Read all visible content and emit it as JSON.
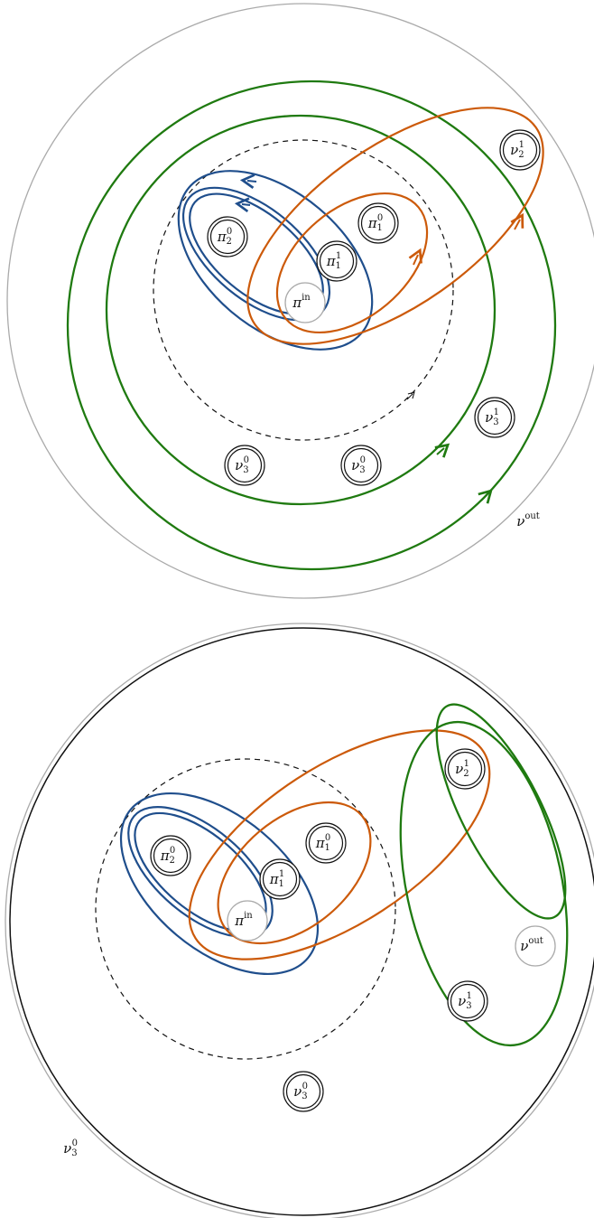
{
  "colors": {
    "blue": "#1f4e8c",
    "orange": "#cc5a0a",
    "green": "#1f7a10",
    "gray": "#aaaaaa",
    "black": "#111111"
  },
  "top_panel": {
    "nodes": [
      {
        "id": "pi2_0",
        "base": "π",
        "sub": "2",
        "sup": "0",
        "style": "double"
      },
      {
        "id": "pi1_0",
        "base": "π",
        "sub": "1",
        "sup": "0",
        "style": "double"
      },
      {
        "id": "pi1_1",
        "base": "π",
        "sub": "1",
        "sup": "1",
        "style": "double"
      },
      {
        "id": "pi_in",
        "base": "π",
        "sub": "",
        "sup": "in",
        "style": "gray"
      },
      {
        "id": "nu2_1",
        "base": "ν",
        "sub": "2",
        "sup": "1",
        "style": "double"
      },
      {
        "id": "nu3_1",
        "base": "ν",
        "sub": "3",
        "sup": "1",
        "style": "double"
      },
      {
        "id": "nu3_0a",
        "base": "ν",
        "sub": "3",
        "sup": "0",
        "style": "double"
      },
      {
        "id": "nu3_0b",
        "base": "ν",
        "sub": "3",
        "sup": "0",
        "style": "double"
      }
    ],
    "outer_label": {
      "base": "ν",
      "sub": "",
      "sup": "out"
    }
  },
  "bottom_panel": {
    "nodes": [
      {
        "id": "pi2_0",
        "base": "π",
        "sub": "2",
        "sup": "0",
        "style": "double"
      },
      {
        "id": "pi1_0",
        "base": "π",
        "sub": "1",
        "sup": "0",
        "style": "double"
      },
      {
        "id": "pi1_1",
        "base": "π",
        "sub": "1",
        "sup": "1",
        "style": "double"
      },
      {
        "id": "pi_in",
        "base": "π",
        "sub": "",
        "sup": "in",
        "style": "gray"
      },
      {
        "id": "nu2_1",
        "base": "ν",
        "sub": "2",
        "sup": "1",
        "style": "double"
      },
      {
        "id": "nu_out",
        "base": "ν",
        "sub": "",
        "sup": "out",
        "style": "gray"
      },
      {
        "id": "nu3_1",
        "base": "ν",
        "sub": "3",
        "sup": "1",
        "style": "double"
      },
      {
        "id": "nu3_0",
        "base": "ν",
        "sub": "3",
        "sup": "0",
        "style": "double"
      }
    ],
    "outer_label": {
      "base": "ν",
      "sub": "3",
      "sup": "0"
    }
  }
}
